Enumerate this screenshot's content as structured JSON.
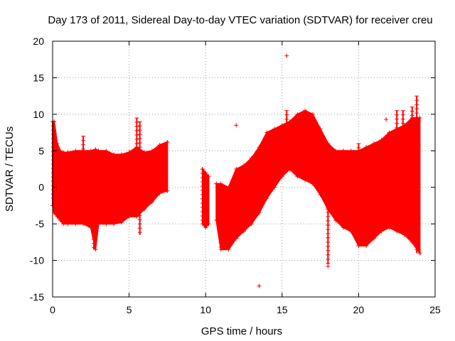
{
  "chart_data": {
    "type": "scatter",
    "title": "Day 173 of 2011, Sidereal Day-to-day VTEC variation (SDTVAR) for receiver creu",
    "xlabel": "GPS time / hours",
    "ylabel": "SDTVAR / TECUs",
    "xlim": [
      0,
      25
    ],
    "ylim": [
      -15,
      20
    ],
    "xticks": [
      0,
      5,
      10,
      15,
      20,
      25
    ],
    "yticks": [
      -15,
      -10,
      -5,
      0,
      5,
      10,
      15,
      20
    ],
    "grid": true,
    "marker": "+",
    "series_color": "#ff0000",
    "envelope": {
      "note": "dense scatter band approximated as upper/lower envelopes of the plotted points",
      "segments": [
        {
          "x": [
            0.0,
            0.1,
            0.3,
            0.5,
            0.7,
            1.0,
            1.5,
            2.0,
            2.5,
            2.8,
            3.0,
            3.5,
            4.0,
            4.5,
            5.0,
            5.5,
            6.0,
            6.5,
            7.0,
            7.5
          ],
          "upper": [
            9.0,
            9.0,
            6.0,
            5.0,
            4.8,
            4.8,
            5.0,
            5.0,
            5.0,
            5.2,
            5.0,
            5.0,
            4.5,
            4.5,
            4.8,
            5.5,
            4.8,
            5.0,
            5.8,
            6.2
          ],
          "lower": [
            -2.5,
            -3.5,
            -4.0,
            -4.5,
            -5.0,
            -5.0,
            -5.0,
            -5.0,
            -5.5,
            -8.5,
            -5.0,
            -5.0,
            -5.0,
            -4.8,
            -4.0,
            -4.0,
            -3.0,
            -2.0,
            -0.8,
            -0.5
          ]
        },
        {
          "x": [
            9.8,
            10.0,
            10.2
          ],
          "upper": [
            2.5,
            2.0,
            1.5
          ],
          "lower": [
            -5.0,
            -5.5,
            -5.0
          ]
        },
        {
          "x": [
            10.7,
            11.0,
            11.5,
            12.0,
            12.5,
            13.0,
            13.5,
            14.0,
            14.5,
            15.0,
            15.5,
            16.0,
            16.5,
            17.0,
            17.5,
            18.0,
            18.5,
            19.0,
            19.5,
            20.0,
            20.5,
            21.0,
            21.5,
            22.0,
            22.5,
            23.0,
            23.5,
            24.0
          ],
          "upper": [
            0.5,
            0.5,
            0.0,
            2.5,
            3.0,
            4.0,
            5.5,
            7.5,
            8.0,
            8.5,
            9.0,
            10.0,
            10.5,
            10.0,
            8.0,
            6.0,
            5.0,
            5.0,
            5.0,
            5.0,
            5.5,
            6.0,
            6.5,
            7.5,
            8.0,
            8.5,
            9.5,
            9.5
          ],
          "lower": [
            -4.5,
            -8.5,
            -8.5,
            -7.0,
            -6.0,
            -5.0,
            -3.5,
            -1.5,
            0.0,
            1.5,
            2.5,
            1.5,
            1.0,
            0.5,
            -1.0,
            -3.0,
            -4.5,
            -5.5,
            -6.0,
            -8.0,
            -8.0,
            -7.0,
            -6.0,
            -5.5,
            -6.0,
            -6.5,
            -7.5,
            -9.0
          ]
        }
      ]
    },
    "spikes": [
      {
        "x": 0.05,
        "upper": 9.0,
        "lower": -2.0
      },
      {
        "x": 2.0,
        "upper": 7.0,
        "lower": -4.5
      },
      {
        "x": 2.7,
        "upper": 4.0,
        "lower": -8.5
      },
      {
        "x": 5.5,
        "upper": 9.5,
        "lower": -4.0
      },
      {
        "x": 5.7,
        "upper": 9.0,
        "lower": -6.5
      },
      {
        "x": 9.8,
        "upper": 2.5,
        "lower": -5.0
      },
      {
        "x": 11.0,
        "upper": 0.0,
        "lower": -8.5
      },
      {
        "x": 12.2,
        "upper": 1.0,
        "lower": -3.0
      },
      {
        "x": 15.3,
        "upper": 10.5,
        "lower": 4.0
      },
      {
        "x": 18.0,
        "upper": 3.0,
        "lower": -10.5
      },
      {
        "x": 20.0,
        "upper": 6.0,
        "lower": -8.0
      },
      {
        "x": 22.5,
        "upper": 10.5,
        "lower": -5.5
      },
      {
        "x": 22.9,
        "upper": 10.5,
        "lower": -6.0
      },
      {
        "x": 23.5,
        "upper": 11.0,
        "lower": -7.5
      },
      {
        "x": 23.8,
        "upper": 12.5,
        "lower": -9.0
      }
    ],
    "outliers": [
      {
        "x": 15.3,
        "y": 18.0
      },
      {
        "x": 12.0,
        "y": 8.5
      },
      {
        "x": 13.5,
        "y": -13.5
      },
      {
        "x": 21.8,
        "y": 9.3
      },
      {
        "x": 18.0,
        "y": -10.8
      }
    ]
  }
}
